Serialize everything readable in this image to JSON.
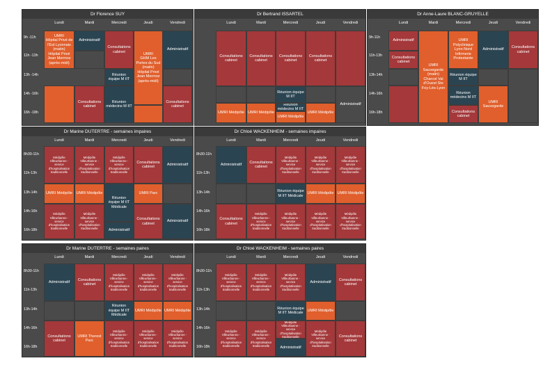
{
  "colors": {
    "consultation": "#a4383a",
    "umri": "#e05f2c",
    "administratif": "#2b4451",
    "empty": "#4a4a4a"
  },
  "days": [
    "Lundi",
    "Mardi",
    "Mercredi",
    "Jeudi",
    "Vendredi"
  ],
  "panels": [
    {
      "title": "Dr Florence SUY",
      "times": [
        "9h -11h",
        "11h -13h",
        "13h -14h",
        "14h -16h",
        "16h -18h"
      ],
      "cells": [
        "UMRI\nHôpital Privé de l'Est Lyonnais (matin)\nHôpital Privé Jean Mermoz (après-midi)",
        "Administratif",
        "Consultations cabinet",
        "UMRI\nGHM Les Portes du Sud (matin)\nHôpital Privé Jean Mermoz (après-midi)",
        "Administratif",
        "Réunion équipe M IIT",
        "Réunion médecins M IIT",
        "Consultations cabinet",
        "Consultations cabinet"
      ]
    },
    {
      "title": "Dr Bertrand ISSARTEL",
      "times": [],
      "cells": [
        "Consultations cabinet",
        "Consultations cabinet",
        "Consultations cabinet",
        "Consultations cabinet",
        "Réunion équipe M IIT",
        "Administratif",
        "Réunion médecins M IIT",
        "UMRI Médipôle",
        "UMRI Médipôle",
        "UMRI Médipôle",
        "UMRI Médipôle"
      ]
    },
    {
      "title": "Dr Anne-Laure BLANC-GRUYELLE",
      "times": [
        "9h-11h",
        "11h-13h",
        "13h-14h",
        "14h-16h",
        "16h-18h"
      ],
      "cells": [
        "Administratif",
        "Consultations cabinet",
        "UMRI\nSauvegarde (matin)\nCharcot Val d'Ouest Ste Foy-Lès-Lyon",
        "UMRI Polyclinique Lyon Nord Infirmerie Protestante",
        "Administratif",
        "Consultations cabinet",
        "Réunion équipe M IIT",
        "Réunion médecins M IIT",
        "Consultations cabinet",
        "Consultations cabinet",
        "UMRI Sauvegarde"
      ]
    },
    {
      "title": "Dr Marine DUTERTRE - semaines impaires",
      "times": [
        "8h30-11h",
        "11h-13h",
        "13h-14h",
        "14h-16h",
        "16h-18h"
      ],
      "cells": [
        "Médipôle Villeurbanne - service d'hospitalisation traditionnelle",
        "Consultations cabinet",
        "Administratif",
        "UMRI Médipôle",
        "UMRI Médipôle",
        "Réunion équipe M IIT Médicale",
        "UMRI Parc",
        "Consultations cabinet",
        "Administratif",
        "Administratif"
      ]
    },
    {
      "title": "Dr Chloé WACKENHEIM - semaines impaires",
      "times": [
        "8h30-11h",
        "11h-13h",
        "13h-14h",
        "14h-16h",
        "16h-18h"
      ],
      "cells": [
        "Administratif",
        "Consultations cabinet",
        "Réunion équipe M IIT Médicale",
        "UMRI Médipôle",
        "Consultations cabinet"
      ]
    },
    {
      "title": "Dr Marine DUTERTRE - semaines paires",
      "times": [
        "8h30-11h",
        "11h-13h",
        "13h-14h",
        "14h-16h",
        "16h-18h"
      ],
      "cells": [
        "Administratif",
        "Consultations cabinet",
        "Réunion équipe M IIT Médicale",
        "UMRI Médipôle",
        "Consultations cabinet",
        "UMRI Therest Parc"
      ]
    },
    {
      "title": "Dr Chloé WACKENHEIM - semaines paires",
      "times": [
        "8h30-11h",
        "11h-13h",
        "13h-14h",
        "14h-16h",
        "16h-18h"
      ],
      "cells": [
        "Administratif",
        "Consultations cabinet",
        "Réunion équipe M IIT Médicale",
        "UMRI Médipôle",
        "Consultations cabinet",
        "Administratif"
      ]
    }
  ]
}
